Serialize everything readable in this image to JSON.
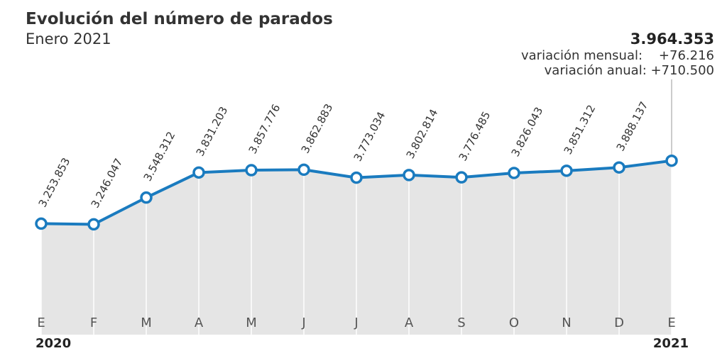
{
  "header": {
    "title": "Evolución del número de parados",
    "subtitle": "Enero 2021"
  },
  "annotation": {
    "value": "3.964.353",
    "mensual": "variación mensual:    +76.216",
    "anual": "variación anual: +710.500"
  },
  "chart_data": {
    "type": "area",
    "categories": [
      "E",
      "F",
      "M",
      "A",
      "M",
      "J",
      "J",
      "A",
      "S",
      "O",
      "N",
      "D",
      "E"
    ],
    "values": [
      3253853,
      3246047,
      3548312,
      3831203,
      3857776,
      3862883,
      3773034,
      3802814,
      3776485,
      3826043,
      3851312,
      3888137,
      3964353
    ],
    "data_labels": [
      "3.253.853",
      "3.246.047",
      "3.548.312",
      "3.831.203",
      "3.857.776",
      "3.862.883",
      "3.773.034",
      "3.802.814",
      "3.776.485",
      "3.826.043",
      "3.851.312",
      "3.888.137",
      ""
    ],
    "year_labels": [
      "2020",
      "2021"
    ],
    "title": "Evolución del número de parados",
    "subtitle": "Enero 2021",
    "xlabel": "",
    "ylabel": "",
    "ylim": [
      2000000,
      4200000
    ],
    "grid": "vertical",
    "colors": {
      "line": "#1a7bbf",
      "area": "#e5e5e5",
      "marker_fill": "#ffffff",
      "grid": "#ffffff",
      "text": "#333333"
    }
  }
}
